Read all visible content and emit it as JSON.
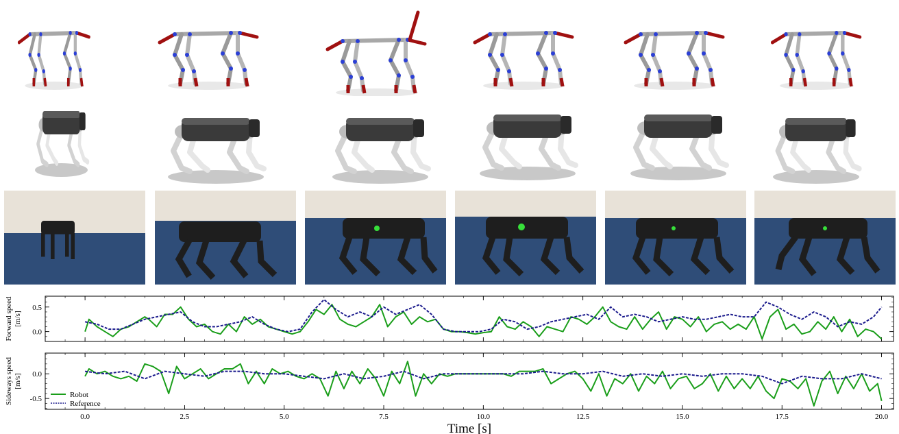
{
  "colors": {
    "robot": "#1a9e1a",
    "reference": "#1a1a8c",
    "bone": "#a8a8a8",
    "joint": "#2b3fd6",
    "foot": "#b01515",
    "robot_body": "#3a3a3a",
    "robot_leg": "#d8d8d8",
    "wall": "#ece6dc",
    "floor": "#2f4d78"
  },
  "figure": {
    "skeleton_row_icons": [
      "quadruped-skeleton",
      "quadruped-skeleton",
      "quadruped-skeleton",
      "quadruped-skeleton",
      "quadruped-skeleton",
      "quadruped-skeleton"
    ],
    "sim_row_icons": [
      "simulated-robot-dog",
      "simulated-robot-dog",
      "simulated-robot-dog",
      "simulated-robot-dog",
      "simulated-robot-dog",
      "simulated-robot-dog"
    ],
    "photo_row_icons": [
      "real-robot-photo",
      "real-robot-photo",
      "real-robot-photo",
      "real-robot-photo",
      "real-robot-photo",
      "real-robot-photo"
    ]
  },
  "chart_data": [
    {
      "type": "line",
      "ylabel_line1": "Forward speed",
      "ylabel_line2": "[m/s]",
      "xlim": [
        -1.0,
        20.3
      ],
      "ylim": [
        -0.2,
        0.72
      ],
      "xticks": [
        0.0,
        2.5,
        5.0,
        7.5,
        10.0,
        12.5,
        15.0,
        17.5,
        20.0
      ],
      "xtick_labels": [
        "0.0",
        "2.5",
        "5.0",
        "7.5",
        "10.0",
        "12.5",
        "15.0",
        "17.5",
        "20.0"
      ],
      "yticks": [
        0.0,
        0.5
      ],
      "ytick_labels": [
        "0.0",
        "0.5"
      ],
      "show_xtick_labels": false,
      "series": [
        {
          "name": "Robot",
          "x": [
            0.0,
            0.1,
            0.3,
            0.5,
            0.7,
            0.9,
            1.1,
            1.3,
            1.5,
            1.6,
            1.8,
            2.0,
            2.2,
            2.4,
            2.6,
            2.8,
            3.0,
            3.2,
            3.4,
            3.6,
            3.8,
            4.0,
            4.2,
            4.4,
            4.6,
            4.8,
            5.0,
            5.2,
            5.4,
            5.6,
            5.8,
            6.0,
            6.2,
            6.4,
            6.6,
            6.8,
            7.0,
            7.2,
            7.4,
            7.6,
            7.8,
            8.0,
            8.2,
            8.4,
            8.6,
            8.8,
            9.0,
            9.2,
            9.4,
            9.6,
            9.8,
            10.0,
            10.2,
            10.4,
            10.6,
            10.8,
            11.0,
            11.2,
            11.4,
            11.6,
            11.8,
            12.0,
            12.2,
            12.4,
            12.6,
            12.8,
            13.0,
            13.2,
            13.4,
            13.6,
            13.8,
            14.0,
            14.2,
            14.4,
            14.6,
            14.8,
            15.0,
            15.2,
            15.4,
            15.6,
            15.8,
            16.0,
            16.2,
            16.4,
            16.6,
            16.8,
            17.0,
            17.2,
            17.4,
            17.6,
            17.8,
            18.0,
            18.2,
            18.4,
            18.6,
            18.8,
            19.0,
            19.2,
            19.4,
            19.6,
            19.8,
            20.0
          ],
          "y": [
            0.0,
            0.25,
            0.1,
            0.0,
            -0.1,
            0.05,
            0.1,
            0.2,
            0.3,
            0.25,
            0.1,
            0.35,
            0.35,
            0.5,
            0.25,
            0.1,
            0.15,
            0.0,
            -0.05,
            0.15,
            0.0,
            0.3,
            0.15,
            0.25,
            0.1,
            0.05,
            0.0,
            -0.05,
            0.0,
            0.2,
            0.45,
            0.35,
            0.55,
            0.25,
            0.15,
            0.1,
            0.2,
            0.3,
            0.55,
            0.1,
            0.3,
            0.4,
            0.15,
            0.3,
            0.2,
            0.25,
            0.05,
            0.0,
            0.0,
            -0.02,
            -0.05,
            -0.02,
            0.0,
            0.3,
            0.1,
            0.05,
            0.2,
            0.1,
            -0.1,
            0.1,
            0.05,
            0.0,
            0.3,
            0.25,
            0.15,
            0.3,
            0.5,
            0.2,
            0.1,
            0.05,
            0.3,
            0.05,
            0.25,
            0.4,
            0.05,
            0.3,
            0.25,
            0.1,
            0.3,
            0.0,
            0.15,
            0.2,
            0.05,
            0.15,
            0.05,
            0.3,
            -0.15,
            0.3,
            0.45,
            0.05,
            0.15,
            -0.05,
            0.0,
            0.2,
            0.05,
            0.3,
            0.0,
            0.25,
            -0.1,
            0.05,
            0.0,
            -0.15
          ],
          "color": "#1a9e1a",
          "style": "solid"
        },
        {
          "name": "Reference",
          "x": [
            0.0,
            0.3,
            0.6,
            0.9,
            1.2,
            1.5,
            1.8,
            2.1,
            2.4,
            2.7,
            3.0,
            3.3,
            3.6,
            3.9,
            4.2,
            4.5,
            4.8,
            5.1,
            5.4,
            5.7,
            6.0,
            6.3,
            6.6,
            6.9,
            7.2,
            7.5,
            7.8,
            8.1,
            8.4,
            8.7,
            9.0,
            9.3,
            9.6,
            9.9,
            10.2,
            10.5,
            10.8,
            11.1,
            11.4,
            11.7,
            12.0,
            12.3,
            12.6,
            12.9,
            13.2,
            13.5,
            13.8,
            14.1,
            14.4,
            14.7,
            15.0,
            15.3,
            15.6,
            15.9,
            16.2,
            16.5,
            16.8,
            17.1,
            17.4,
            17.7,
            18.0,
            18.3,
            18.6,
            18.9,
            19.2,
            19.5,
            19.8,
            20.0
          ],
          "y": [
            0.2,
            0.15,
            0.05,
            0.05,
            0.15,
            0.25,
            0.3,
            0.35,
            0.4,
            0.2,
            0.1,
            0.1,
            0.15,
            0.2,
            0.3,
            0.15,
            0.05,
            0.0,
            0.05,
            0.4,
            0.65,
            0.45,
            0.3,
            0.4,
            0.3,
            0.5,
            0.35,
            0.45,
            0.55,
            0.35,
            0.05,
            0.0,
            0.0,
            0.0,
            0.05,
            0.25,
            0.2,
            0.05,
            0.1,
            0.2,
            0.25,
            0.3,
            0.35,
            0.25,
            0.5,
            0.3,
            0.35,
            0.3,
            0.2,
            0.25,
            0.3,
            0.25,
            0.25,
            0.3,
            0.35,
            0.3,
            0.3,
            0.6,
            0.5,
            0.35,
            0.25,
            0.4,
            0.3,
            0.1,
            0.2,
            0.15,
            0.3,
            0.5
          ],
          "color": "#1a1a8c",
          "style": "dashed"
        }
      ]
    },
    {
      "type": "line",
      "ylabel_line1": "Sideways speed",
      "ylabel_line2": "[m/s]",
      "xlabel": "Time [s]",
      "xlim": [
        -1.0,
        20.3
      ],
      "ylim": [
        -0.72,
        0.42
      ],
      "xticks": [
        0.0,
        2.5,
        5.0,
        7.5,
        10.0,
        12.5,
        15.0,
        17.5,
        20.0
      ],
      "xtick_labels": [
        "0.0",
        "2.5",
        "5.0",
        "7.5",
        "10.0",
        "12.5",
        "15.0",
        "17.5",
        "20.0"
      ],
      "yticks": [
        0.0,
        -0.5
      ],
      "ytick_labels": [
        "0.0",
        "-0.5"
      ],
      "show_xtick_labels": true,
      "legend": {
        "position": "lower-left",
        "entries": [
          "Robot",
          "Reference"
        ]
      },
      "series": [
        {
          "name": "Robot",
          "x": [
            0.0,
            0.1,
            0.3,
            0.5,
            0.7,
            0.9,
            1.1,
            1.3,
            1.5,
            1.7,
            1.9,
            2.1,
            2.3,
            2.5,
            2.7,
            2.9,
            3.1,
            3.3,
            3.5,
            3.7,
            3.9,
            4.1,
            4.3,
            4.5,
            4.7,
            4.9,
            5.1,
            5.3,
            5.5,
            5.7,
            5.9,
            6.1,
            6.3,
            6.5,
            6.7,
            6.9,
            7.1,
            7.3,
            7.5,
            7.7,
            7.9,
            8.1,
            8.3,
            8.5,
            8.7,
            8.9,
            9.1,
            9.3,
            9.5,
            9.7,
            9.9,
            10.1,
            10.3,
            10.5,
            10.7,
            10.9,
            11.1,
            11.3,
            11.5,
            11.7,
            11.9,
            12.1,
            12.3,
            12.5,
            12.7,
            12.9,
            13.1,
            13.3,
            13.5,
            13.7,
            13.9,
            14.1,
            14.3,
            14.5,
            14.7,
            14.9,
            15.1,
            15.3,
            15.5,
            15.7,
            15.9,
            16.1,
            16.3,
            16.5,
            16.7,
            16.9,
            17.1,
            17.3,
            17.5,
            17.7,
            17.9,
            18.1,
            18.3,
            18.5,
            18.7,
            18.9,
            19.1,
            19.3,
            19.5,
            19.7,
            19.9,
            20.0
          ],
          "y": [
            -0.05,
            0.1,
            0.0,
            0.05,
            -0.05,
            -0.1,
            -0.05,
            -0.15,
            0.2,
            0.15,
            0.05,
            -0.4,
            0.15,
            -0.1,
            0.0,
            0.1,
            -0.1,
            0.0,
            0.1,
            0.1,
            0.2,
            -0.2,
            0.05,
            -0.2,
            0.1,
            0.0,
            0.05,
            -0.05,
            -0.1,
            0.0,
            -0.1,
            -0.45,
            0.05,
            -0.3,
            0.05,
            -0.2,
            0.1,
            -0.1,
            -0.45,
            0.05,
            -0.2,
            0.25,
            -0.45,
            0.0,
            -0.2,
            0.0,
            -0.05,
            0.0,
            0.0,
            0.0,
            0.0,
            0.0,
            0.0,
            0.0,
            -0.05,
            0.05,
            0.05,
            0.05,
            0.1,
            -0.2,
            -0.1,
            0.0,
            0.05,
            -0.1,
            -0.35,
            0.0,
            -0.45,
            -0.1,
            -0.2,
            0.0,
            -0.35,
            -0.05,
            -0.2,
            0.05,
            -0.3,
            -0.1,
            -0.05,
            -0.3,
            -0.2,
            0.0,
            -0.35,
            -0.05,
            -0.3,
            -0.1,
            -0.3,
            -0.05,
            -0.35,
            -0.5,
            -0.1,
            -0.15,
            -0.3,
            -0.1,
            -0.65,
            -0.15,
            0.05,
            -0.4,
            -0.05,
            -0.3,
            0.0,
            -0.35,
            -0.2,
            -0.55
          ],
          "color": "#1a9e1a",
          "style": "solid"
        },
        {
          "name": "Reference",
          "x": [
            0.0,
            0.5,
            1.0,
            1.5,
            2.0,
            2.5,
            3.0,
            3.5,
            4.0,
            4.5,
            5.0,
            5.5,
            6.0,
            6.5,
            7.0,
            7.5,
            8.0,
            8.5,
            9.0,
            9.5,
            10.0,
            10.5,
            11.0,
            11.5,
            12.0,
            12.5,
            13.0,
            13.5,
            14.0,
            14.5,
            15.0,
            15.5,
            16.0,
            16.5,
            17.0,
            17.5,
            18.0,
            18.5,
            19.0,
            19.5,
            20.0
          ],
          "y": [
            0.05,
            0.0,
            0.05,
            -0.1,
            0.05,
            0.0,
            -0.05,
            0.05,
            0.05,
            0.0,
            0.0,
            -0.05,
            -0.1,
            0.0,
            -0.1,
            -0.05,
            0.05,
            -0.1,
            0.0,
            0.0,
            0.0,
            0.0,
            0.0,
            0.05,
            0.0,
            0.0,
            0.05,
            -0.05,
            0.0,
            -0.05,
            0.0,
            -0.05,
            0.0,
            0.0,
            -0.05,
            -0.2,
            -0.05,
            -0.1,
            -0.1,
            0.0,
            -0.1
          ],
          "color": "#1a1a8c",
          "style": "dashed"
        }
      ]
    }
  ]
}
